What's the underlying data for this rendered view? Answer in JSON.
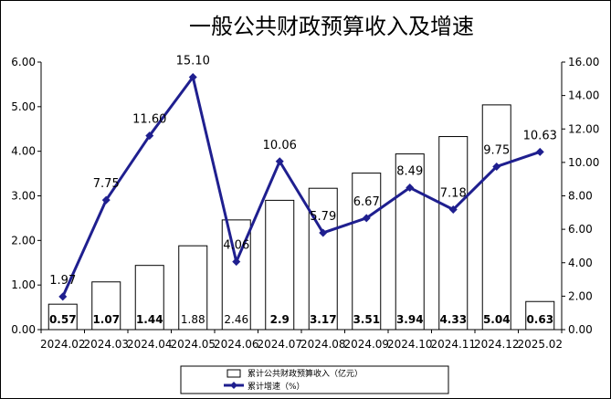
{
  "chart_data": {
    "type": "bar+line",
    "title": "一般公共财政预算收入及增速",
    "categories": [
      "2024.02",
      "2024.03",
      "2024.04",
      "2024.05",
      "2024.06",
      "2024.07",
      "2024.08",
      "2024.09",
      "2024.10",
      "2024.11",
      "2024.12",
      "2025.02"
    ],
    "series": [
      {
        "name": "累计公共财政预算收入（亿元）",
        "type": "bar",
        "axis": "left",
        "values": [
          0.57,
          1.07,
          1.44,
          1.88,
          2.46,
          2.9,
          3.17,
          3.51,
          3.94,
          4.33,
          5.04,
          0.63
        ],
        "labels": [
          "0.57",
          "1.07",
          "1.44",
          "1.88",
          "2.46",
          "2.9",
          "3.17",
          "3.51",
          "3.94",
          "4.33",
          "5.04",
          "0.63"
        ],
        "label_bold": [
          true,
          true,
          true,
          false,
          false,
          true,
          true,
          true,
          true,
          true,
          true,
          true
        ]
      },
      {
        "name": "累计增速（%）",
        "type": "line",
        "axis": "right",
        "color": "#1f1f8f",
        "values": [
          1.97,
          7.75,
          11.6,
          15.1,
          4.06,
          10.06,
          5.79,
          6.67,
          8.49,
          7.18,
          9.75,
          10.63
        ],
        "labels": [
          "1.97",
          "7.75",
          "11.60",
          "15.10",
          "4.06",
          "10.06",
          "5.79",
          "6.67",
          "8.49",
          "7.18",
          "9.75",
          "10.63"
        ]
      }
    ],
    "y_left": {
      "min": 0,
      "max": 6,
      "ticks": [
        "0.00",
        "1.00",
        "2.00",
        "3.00",
        "4.00",
        "5.00",
        "6.00"
      ]
    },
    "y_right": {
      "min": 0,
      "max": 16,
      "ticks": [
        "0.00",
        "2.00",
        "4.00",
        "6.00",
        "8.00",
        "10.00",
        "12.00",
        "14.00",
        "16.00"
      ]
    },
    "grid": false,
    "legend_position": "bottom"
  }
}
